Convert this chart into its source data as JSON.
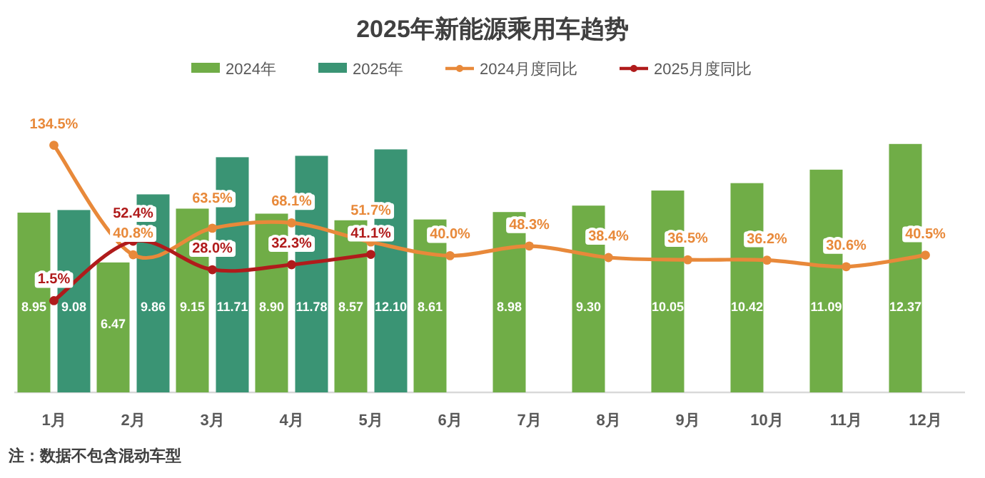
{
  "chart_data": {
    "type": "bar",
    "title": "2025年新能源乘用车趋势",
    "legend": "top",
    "tick_labels": "x",
    "marker": "circle",
    "line_style": "solid",
    "categories": [
      "1月",
      "2月",
      "3月",
      "4月",
      "5月",
      "6月",
      "7月",
      "8月",
      "9月",
      "10月",
      "11月",
      "12月"
    ],
    "series": [
      {
        "name": "2024年",
        "color": "#70ad47",
        "values": [
          8.95,
          6.47,
          9.15,
          8.9,
          8.57,
          8.61,
          8.98,
          9.3,
          10.05,
          10.42,
          11.09,
          12.37
        ],
        "value_labels": [
          "8.95",
          "6.47",
          "9.15",
          "8.90",
          "8.57",
          "8.61",
          "8.98",
          "9.30",
          "10.05",
          "10.42",
          "11.09",
          "12.37"
        ]
      },
      {
        "name": "2025年",
        "color": "#3a9474",
        "values": [
          9.08,
          9.86,
          11.71,
          11.78,
          12.1,
          null,
          null,
          null,
          null,
          null,
          null,
          null
        ],
        "value_labels": [
          "9.08",
          "9.86",
          "11.71",
          "11.78",
          "12.10",
          null,
          null,
          null,
          null,
          null,
          null,
          null
        ]
      },
      {
        "name": "2024月度同比",
        "type": "line",
        "axis": "y2",
        "color": "#e8893a",
        "values": [
          134.5,
          40.8,
          63.5,
          68.1,
          51.7,
          40.0,
          48.3,
          38.4,
          36.5,
          36.2,
          30.6,
          40.5
        ],
        "value_labels": [
          "134.5%",
          "40.8%",
          "63.5%",
          "68.1%",
          "51.7%",
          "40.0%",
          "48.3%",
          "38.4%",
          "36.5%",
          "36.2%",
          "30.6%",
          "40.5%"
        ]
      },
      {
        "name": "2025月度同比",
        "type": "line",
        "axis": "y2",
        "color": "#b01b1b",
        "values": [
          1.5,
          52.4,
          28.0,
          32.3,
          41.1,
          null,
          null,
          null,
          null,
          null,
          null,
          null
        ],
        "value_labels": [
          "1.5%",
          "52.4%",
          "28.0%",
          "32.3%",
          "41.1%",
          null,
          null,
          null,
          null,
          null,
          null,
          null
        ]
      }
    ],
    "annotations": [
      "注：数据不包含混动车型"
    ]
  }
}
